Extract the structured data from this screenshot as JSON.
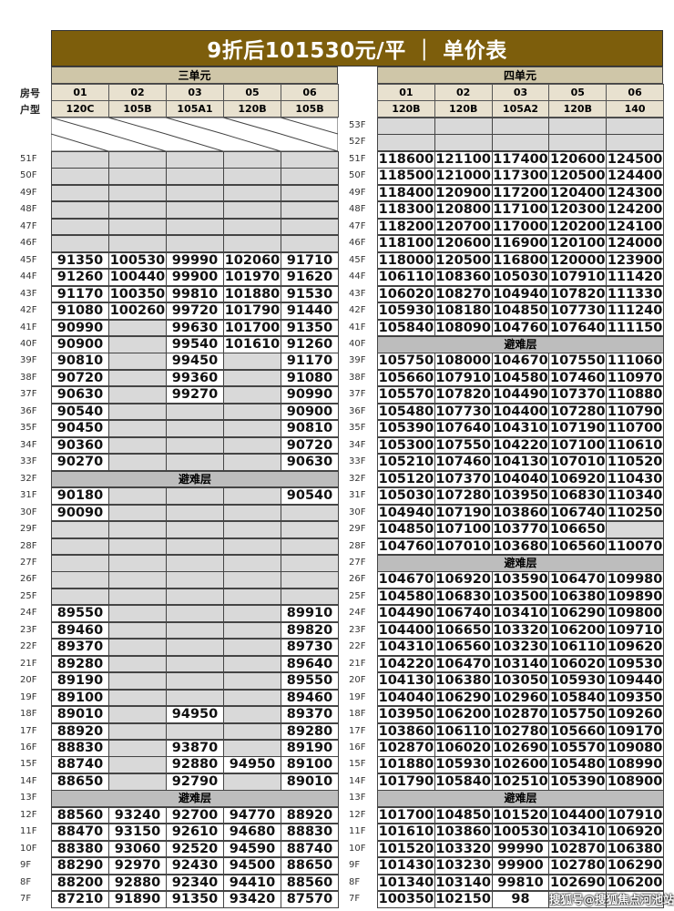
{
  "title": "9折后101530元/平 ｜ 单价表",
  "row_labels": {
    "room": "房号",
    "type": "户型"
  },
  "refuge_label": "避难层",
  "watermark": "搜狐号@搜狐焦点河池站",
  "colors": {
    "title_bg": "#7d5e0c",
    "unit_header_bg": "#cfc6a8",
    "sub_header_bg": "#e8e1cf",
    "unavailable": "#d9d9d9",
    "refuge": "#bdbdbd"
  },
  "left": {
    "unit": "三单元",
    "rooms": [
      "01",
      "02",
      "03",
      "05",
      "06"
    ],
    "types": [
      "120C",
      "105B",
      "105A1",
      "120B",
      "105B"
    ],
    "top_blank_floors": 2,
    "rows": [
      {
        "floor": "51F",
        "values": [
          null,
          null,
          null,
          null,
          null
        ]
      },
      {
        "floor": "50F",
        "values": [
          null,
          null,
          null,
          null,
          null
        ]
      },
      {
        "floor": "49F",
        "values": [
          null,
          null,
          null,
          null,
          null
        ]
      },
      {
        "floor": "48F",
        "values": [
          null,
          null,
          null,
          null,
          null
        ]
      },
      {
        "floor": "47F",
        "values": [
          null,
          null,
          null,
          null,
          null
        ]
      },
      {
        "floor": "46F",
        "values": [
          null,
          null,
          null,
          null,
          null
        ]
      },
      {
        "floor": "45F",
        "values": [
          "91350",
          "100530",
          "99990",
          "102060",
          "91710"
        ]
      },
      {
        "floor": "44F",
        "values": [
          "91260",
          "100440",
          "99900",
          "101970",
          "91620"
        ]
      },
      {
        "floor": "43F",
        "values": [
          "91170",
          "100350",
          "99810",
          "101880",
          "91530"
        ]
      },
      {
        "floor": "42F",
        "values": [
          "91080",
          "100260",
          "99720",
          "101790",
          "91440"
        ]
      },
      {
        "floor": "41F",
        "values": [
          "90990",
          null,
          "99630",
          "101700",
          "91350"
        ]
      },
      {
        "floor": "40F",
        "values": [
          "90900",
          null,
          "99540",
          "101610",
          "91260"
        ]
      },
      {
        "floor": "39F",
        "values": [
          "90810",
          null,
          "99450",
          null,
          "91170"
        ]
      },
      {
        "floor": "38F",
        "values": [
          "90720",
          null,
          "99360",
          null,
          "91080"
        ]
      },
      {
        "floor": "37F",
        "values": [
          "90630",
          null,
          "99270",
          null,
          "90990"
        ]
      },
      {
        "floor": "36F",
        "values": [
          "90540",
          null,
          null,
          null,
          "90900"
        ]
      },
      {
        "floor": "35F",
        "values": [
          "90450",
          null,
          null,
          null,
          "90810"
        ]
      },
      {
        "floor": "34F",
        "values": [
          "90360",
          null,
          null,
          null,
          "90720"
        ]
      },
      {
        "floor": "33F",
        "values": [
          "90270",
          null,
          null,
          null,
          "90630"
        ]
      },
      {
        "floor": "32F",
        "refuge": true
      },
      {
        "floor": "31F",
        "values": [
          "90180",
          null,
          null,
          null,
          "90540"
        ]
      },
      {
        "floor": "30F",
        "values": [
          "90090",
          null,
          null,
          null,
          null
        ]
      },
      {
        "floor": "29F",
        "values": [
          null,
          null,
          null,
          null,
          null
        ]
      },
      {
        "floor": "28F",
        "values": [
          null,
          null,
          null,
          null,
          null
        ]
      },
      {
        "floor": "27F",
        "values": [
          null,
          null,
          null,
          null,
          null
        ]
      },
      {
        "floor": "26F",
        "values": [
          null,
          null,
          null,
          null,
          null
        ]
      },
      {
        "floor": "25F",
        "values": [
          null,
          null,
          null,
          null,
          null
        ]
      },
      {
        "floor": "24F",
        "values": [
          "89550",
          null,
          null,
          null,
          "89910"
        ]
      },
      {
        "floor": "23F",
        "values": [
          "89460",
          null,
          null,
          null,
          "89820"
        ]
      },
      {
        "floor": "22F",
        "values": [
          "89370",
          null,
          null,
          null,
          "89730"
        ]
      },
      {
        "floor": "21F",
        "values": [
          "89280",
          null,
          null,
          null,
          "89640"
        ]
      },
      {
        "floor": "20F",
        "values": [
          "89190",
          null,
          null,
          null,
          "89550"
        ]
      },
      {
        "floor": "19F",
        "values": [
          "89100",
          null,
          null,
          null,
          "89460"
        ]
      },
      {
        "floor": "18F",
        "values": [
          "89010",
          null,
          "94950",
          null,
          "89370"
        ]
      },
      {
        "floor": "17F",
        "values": [
          "88920",
          null,
          null,
          null,
          "89280"
        ]
      },
      {
        "floor": "16F",
        "values": [
          "88830",
          null,
          "93870",
          null,
          "89190"
        ]
      },
      {
        "floor": "15F",
        "values": [
          "88740",
          null,
          "92880",
          "94950",
          "89100"
        ]
      },
      {
        "floor": "14F",
        "values": [
          "88650",
          null,
          "92790",
          null,
          "89010"
        ]
      },
      {
        "floor": "13F",
        "refuge": true
      },
      {
        "floor": "12F",
        "values": [
          "88560",
          "93240",
          "92700",
          "94770",
          "88920"
        ]
      },
      {
        "floor": "11F",
        "values": [
          "88470",
          "93150",
          "92610",
          "94680",
          "88830"
        ]
      },
      {
        "floor": "10F",
        "values": [
          "88380",
          "93060",
          "92520",
          "94590",
          "88740"
        ]
      },
      {
        "floor": "9F",
        "values": [
          "88290",
          "92970",
          "92430",
          "94500",
          "88650"
        ]
      },
      {
        "floor": "8F",
        "values": [
          "88200",
          "92880",
          "92340",
          "94410",
          "88560"
        ]
      },
      {
        "floor": "7F",
        "values": [
          "87210",
          "91890",
          "91350",
          "93420",
          "87570"
        ]
      }
    ]
  },
  "right": {
    "unit": "四单元",
    "rooms": [
      "01",
      "02",
      "03",
      "05",
      "06"
    ],
    "types": [
      "120B",
      "120B",
      "105A2",
      "120B",
      "140"
    ],
    "rows": [
      {
        "floor": "53F",
        "values": [
          null,
          null,
          null,
          null,
          null
        ]
      },
      {
        "floor": "52F",
        "values": [
          null,
          null,
          null,
          null,
          null
        ]
      },
      {
        "floor": "51F",
        "values": [
          "118600",
          "121100",
          "117400",
          "120600",
          "124500"
        ]
      },
      {
        "floor": "50F",
        "values": [
          "118500",
          "121000",
          "117300",
          "120500",
          "124400"
        ]
      },
      {
        "floor": "49F",
        "values": [
          "118400",
          "120900",
          "117200",
          "120400",
          "124300"
        ]
      },
      {
        "floor": "48F",
        "values": [
          "118300",
          "120800",
          "117100",
          "120300",
          "124200"
        ]
      },
      {
        "floor": "47F",
        "values": [
          "118200",
          "120700",
          "117000",
          "120200",
          "124100"
        ]
      },
      {
        "floor": "46F",
        "values": [
          "118100",
          "120600",
          "116900",
          "120100",
          "124000"
        ]
      },
      {
        "floor": "45F",
        "values": [
          "118000",
          "120500",
          "116800",
          "120000",
          "123900"
        ]
      },
      {
        "floor": "44F",
        "values": [
          "106110",
          "108360",
          "105030",
          "107910",
          "111420"
        ]
      },
      {
        "floor": "43F",
        "values": [
          "106020",
          "108270",
          "104940",
          "107820",
          "111330"
        ]
      },
      {
        "floor": "42F",
        "values": [
          "105930",
          "108180",
          "104850",
          "107730",
          "111240"
        ]
      },
      {
        "floor": "41F",
        "values": [
          "105840",
          "108090",
          "104760",
          "107640",
          "111150"
        ]
      },
      {
        "floor": "40F",
        "refuge": true
      },
      {
        "floor": "39F",
        "values": [
          "105750",
          "108000",
          "104670",
          "107550",
          "111060"
        ]
      },
      {
        "floor": "38F",
        "values": [
          "105660",
          "107910",
          "104580",
          "107460",
          "110970"
        ]
      },
      {
        "floor": "37F",
        "values": [
          "105570",
          "107820",
          "104490",
          "107370",
          "110880"
        ]
      },
      {
        "floor": "36F",
        "values": [
          "105480",
          "107730",
          "104400",
          "107280",
          "110790"
        ]
      },
      {
        "floor": "35F",
        "values": [
          "105390",
          "107640",
          "104310",
          "107190",
          "110700"
        ]
      },
      {
        "floor": "34F",
        "values": [
          "105300",
          "107550",
          "104220",
          "107100",
          "110610"
        ]
      },
      {
        "floor": "33F",
        "values": [
          "105210",
          "107460",
          "104130",
          "107010",
          "110520"
        ]
      },
      {
        "floor": "32F",
        "values": [
          "105120",
          "107370",
          "104040",
          "106920",
          "110430"
        ]
      },
      {
        "floor": "31F",
        "values": [
          "105030",
          "107280",
          "103950",
          "106830",
          "110340"
        ]
      },
      {
        "floor": "30F",
        "values": [
          "104940",
          "107190",
          "103860",
          "106740",
          "110250"
        ]
      },
      {
        "floor": "29F",
        "values": [
          "104850",
          "107100",
          "103770",
          "106650",
          null
        ]
      },
      {
        "floor": "28F",
        "values": [
          "104760",
          "107010",
          "103680",
          "106560",
          "110070"
        ]
      },
      {
        "floor": "27F",
        "refuge": true
      },
      {
        "floor": "26F",
        "values": [
          "104670",
          "106920",
          "103590",
          "106470",
          "109980"
        ]
      },
      {
        "floor": "25F",
        "values": [
          "104580",
          "106830",
          "103500",
          "106380",
          "109890"
        ]
      },
      {
        "floor": "24F",
        "values": [
          "104490",
          "106740",
          "103410",
          "106290",
          "109800"
        ]
      },
      {
        "floor": "23F",
        "values": [
          "104400",
          "106650",
          "103320",
          "106200",
          "109710"
        ]
      },
      {
        "floor": "22F",
        "values": [
          "104310",
          "106560",
          "103230",
          "106110",
          "109620"
        ]
      },
      {
        "floor": "21F",
        "values": [
          "104220",
          "106470",
          "103140",
          "106020",
          "109530"
        ]
      },
      {
        "floor": "20F",
        "values": [
          "104130",
          "106380",
          "103050",
          "105930",
          "109440"
        ]
      },
      {
        "floor": "19F",
        "values": [
          "104040",
          "106290",
          "102960",
          "105840",
          "109350"
        ]
      },
      {
        "floor": "18F",
        "values": [
          "103950",
          "106200",
          "102870",
          "105750",
          "109260"
        ]
      },
      {
        "floor": "17F",
        "values": [
          "103860",
          "106110",
          "102780",
          "105660",
          "109170"
        ]
      },
      {
        "floor": "16F",
        "values": [
          "102870",
          "106020",
          "102690",
          "105570",
          "109080"
        ]
      },
      {
        "floor": "15F",
        "values": [
          "101880",
          "105930",
          "102600",
          "105480",
          "108990"
        ]
      },
      {
        "floor": "14F",
        "values": [
          "101790",
          "105840",
          "102510",
          "105390",
          "108900"
        ]
      },
      {
        "floor": "13F",
        "refuge": true
      },
      {
        "floor": "12F",
        "values": [
          "101700",
          "104850",
          "101520",
          "104400",
          "107910"
        ]
      },
      {
        "floor": "11F",
        "values": [
          "101610",
          "103860",
          "100530",
          "103410",
          "106920"
        ]
      },
      {
        "floor": "10F",
        "values": [
          "101520",
          "103320",
          "99990",
          "102870",
          "106380"
        ]
      },
      {
        "floor": "9F",
        "values": [
          "101430",
          "103230",
          "99900",
          "102780",
          "106290"
        ]
      },
      {
        "floor": "8F",
        "values": [
          "101340",
          "103140",
          "99810",
          "102690",
          "106200"
        ]
      },
      {
        "floor": "7F",
        "values": [
          "100350",
          "102150",
          "98",
          "",
          ""
        ]
      }
    ]
  }
}
